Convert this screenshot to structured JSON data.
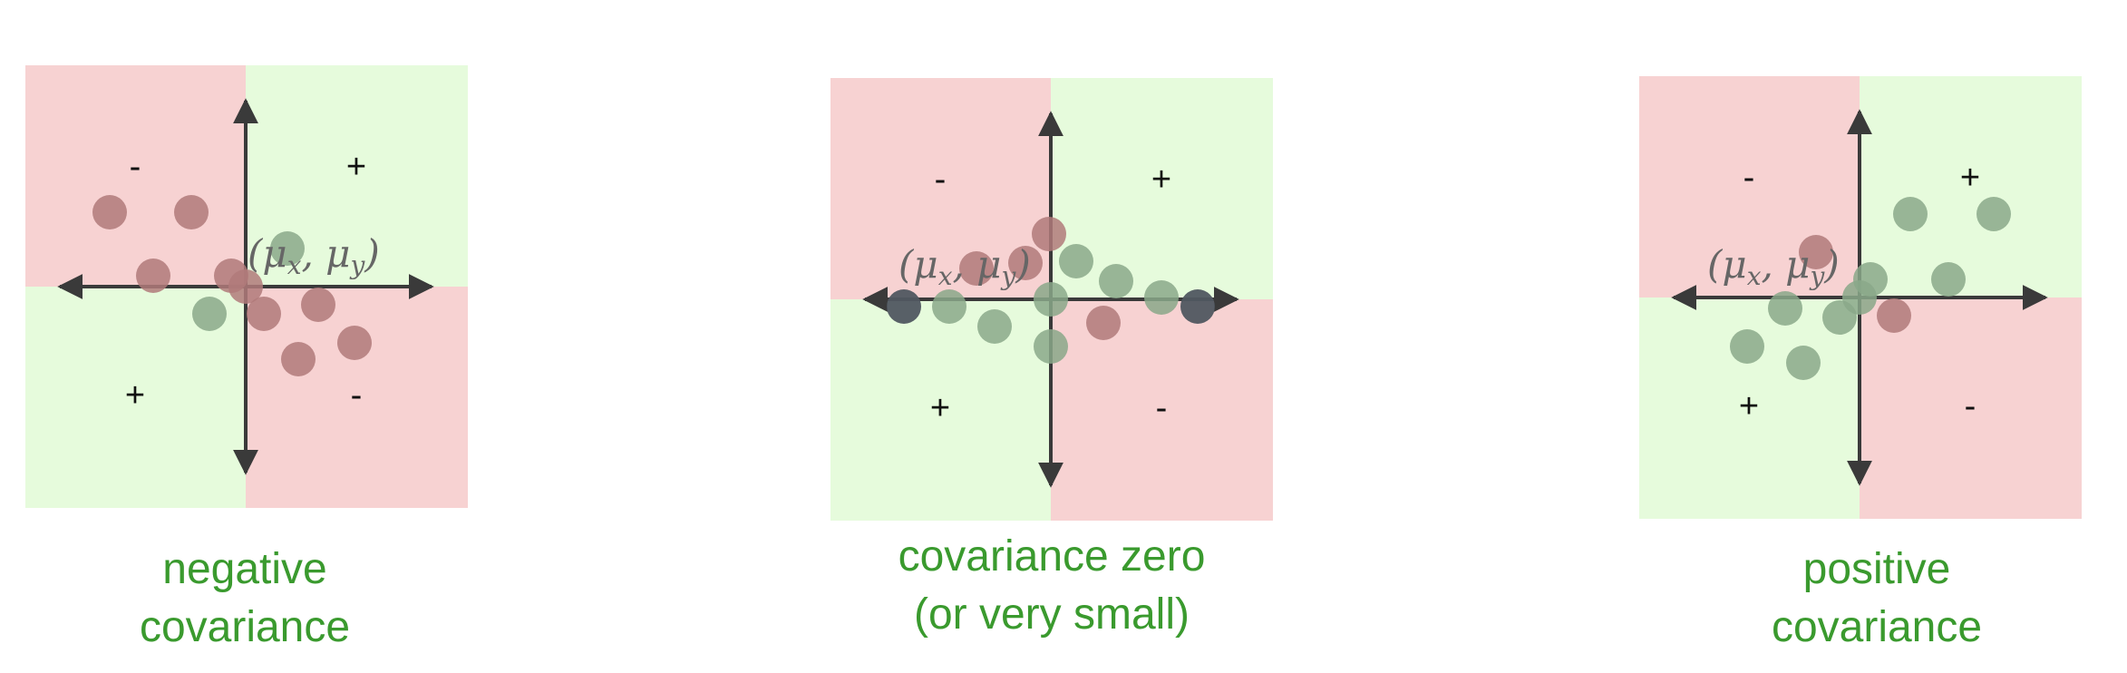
{
  "colors": {
    "negative_quadrant": "#f7d2d2",
    "positive_quadrant": "#e6fbdc",
    "axis": "#3a3a3a",
    "green_point": "#8aa889",
    "red_point": "#b07a7a",
    "dark_point": "#505760",
    "caption": "#3a9a2e"
  },
  "mean_label": {
    "prefix": "(μ",
    "x_sub": "x",
    "mid": ", μ",
    "y_sub": "y",
    "suffix": ")"
  },
  "panels": [
    {
      "id": "negative",
      "caption_lines": [
        "negative",
        "covariance"
      ],
      "quadrant_signs": {
        "top_left": "-",
        "top_right": "+",
        "bottom_left": "+",
        "bottom_right": "-"
      },
      "quadrant_colors": {
        "top_left": "negative",
        "top_right": "positive",
        "bottom_left": "positive",
        "bottom_right": "negative"
      },
      "points": [
        {
          "x": -150,
          "y": 82,
          "c": "red"
        },
        {
          "x": -60,
          "y": 82,
          "c": "red"
        },
        {
          "x": -102,
          "y": 12,
          "c": "red"
        },
        {
          "x": -16,
          "y": 12,
          "c": "red"
        },
        {
          "x": 0,
          "y": 0,
          "c": "red"
        },
        {
          "x": 46,
          "y": 42,
          "c": "green"
        },
        {
          "x": -40,
          "y": -30,
          "c": "green"
        },
        {
          "x": 20,
          "y": -30,
          "c": "red"
        },
        {
          "x": 80,
          "y": -20,
          "c": "red"
        },
        {
          "x": 120,
          "y": -62,
          "c": "red"
        },
        {
          "x": 58,
          "y": -80,
          "c": "red"
        }
      ]
    },
    {
      "id": "zero",
      "caption_lines": [
        "covariance zero",
        "(or very small)"
      ],
      "quadrant_signs": {
        "top_left": "-",
        "top_right": "+",
        "bottom_left": "+",
        "bottom_right": "-"
      },
      "quadrant_colors": {
        "top_left": "negative",
        "top_right": "positive",
        "bottom_left": "positive",
        "bottom_right": "negative"
      },
      "points": [
        {
          "x": -162,
          "y": -8,
          "c": "dark"
        },
        {
          "x": 162,
          "y": -8,
          "c": "dark"
        },
        {
          "x": -112,
          "y": -8,
          "c": "green"
        },
        {
          "x": -62,
          "y": -30,
          "c": "green"
        },
        {
          "x": -82,
          "y": 34,
          "c": "red"
        },
        {
          "x": -28,
          "y": 40,
          "c": "red"
        },
        {
          "x": -2,
          "y": 72,
          "c": "red"
        },
        {
          "x": 28,
          "y": 42,
          "c": "green"
        },
        {
          "x": 72,
          "y": 20,
          "c": "green"
        },
        {
          "x": 122,
          "y": 2,
          "c": "green"
        },
        {
          "x": 0,
          "y": 0,
          "c": "green"
        },
        {
          "x": 0,
          "y": -52,
          "c": "green"
        },
        {
          "x": 58,
          "y": -26,
          "c": "red"
        }
      ]
    },
    {
      "id": "positive",
      "caption_lines": [
        "positive",
        "covariance"
      ],
      "quadrant_signs": {
        "top_left": "-",
        "top_right": "+",
        "bottom_left": "+",
        "bottom_right": "-"
      },
      "quadrant_colors": {
        "top_left": "negative",
        "top_right": "positive",
        "bottom_left": "positive",
        "bottom_right": "negative"
      },
      "points": [
        {
          "x": -48,
          "y": 50,
          "c": "red"
        },
        {
          "x": 56,
          "y": 92,
          "c": "green"
        },
        {
          "x": 148,
          "y": 92,
          "c": "green"
        },
        {
          "x": 12,
          "y": 20,
          "c": "green"
        },
        {
          "x": 98,
          "y": 20,
          "c": "green"
        },
        {
          "x": 0,
          "y": 0,
          "c": "green"
        },
        {
          "x": -22,
          "y": -22,
          "c": "green"
        },
        {
          "x": 38,
          "y": -20,
          "c": "red"
        },
        {
          "x": -82,
          "y": -12,
          "c": "green"
        },
        {
          "x": -124,
          "y": -54,
          "c": "green"
        },
        {
          "x": -62,
          "y": -72,
          "c": "green"
        }
      ]
    }
  ]
}
